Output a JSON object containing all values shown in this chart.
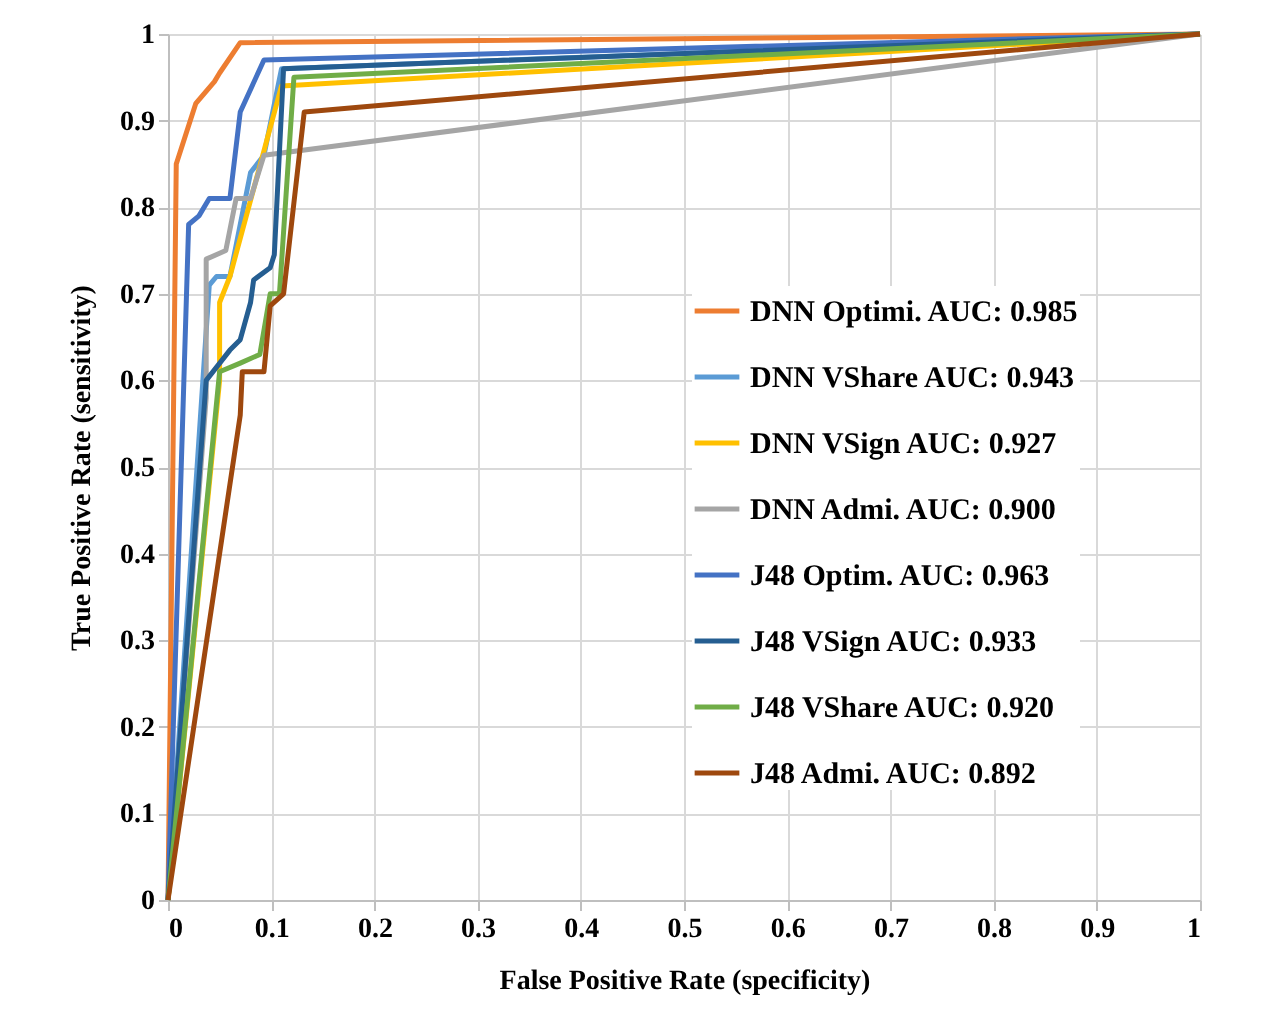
{
  "chart_data": {
    "type": "line",
    "xlabel": "False Positive Rate (specificity)",
    "ylabel": "True Positive Rate (sensitivity)",
    "xlim": [
      0,
      1
    ],
    "ylim": [
      0,
      1
    ],
    "xticks": [
      0,
      0.1,
      0.2,
      0.3,
      0.4,
      0.5,
      0.6,
      0.7,
      0.8,
      0.9,
      1
    ],
    "yticks": [
      0,
      0.1,
      0.2,
      0.3,
      0.4,
      0.5,
      0.6,
      0.7,
      0.8,
      0.9,
      1
    ],
    "grid": true,
    "legend": "right",
    "marker": "none",
    "line_style": "solid",
    "series": [
      {
        "name": "DNN Optimi. AUC: 0.985",
        "color": "#ed7d31",
        "x": [
          0,
          0.008,
          0.027,
          0.045,
          0.05,
          0.07,
          1
        ],
        "values": [
          0,
          0.85,
          0.92,
          0.945,
          0.955,
          0.99,
          1
        ]
      },
      {
        "name": "DNN VShare AUC: 0.943",
        "color": "#5b9bd5",
        "x": [
          0,
          0.04,
          0.047,
          0.06,
          0.08,
          0.093,
          0.11,
          1
        ],
        "values": [
          0,
          0.71,
          0.72,
          0.72,
          0.84,
          0.86,
          0.96,
          1
        ]
      },
      {
        "name": "DNN VSign AUC: 0.927",
        "color": "#ffc000",
        "x": [
          0,
          0.05,
          0.05,
          0.06,
          0.11,
          1
        ],
        "values": [
          0,
          0.6,
          0.69,
          0.72,
          0.94,
          1
        ]
      },
      {
        "name": "DNN Admi. AUC: 0.900",
        "color": "#a5a5a5",
        "x": [
          0,
          0.037,
          0.037,
          0.056,
          0.066,
          0.08,
          0.093,
          1
        ],
        "values": [
          0,
          0.58,
          0.74,
          0.75,
          0.81,
          0.81,
          0.86,
          1
        ]
      },
      {
        "name": "J48 Optim. AUC: 0.963",
        "color": "#4472c4",
        "x": [
          0,
          0.02,
          0.03,
          0.04,
          0.06,
          0.07,
          0.093,
          1
        ],
        "values": [
          0,
          0.78,
          0.79,
          0.81,
          0.81,
          0.91,
          0.97,
          1
        ]
      },
      {
        "name": "J48 VSign AUC: 0.933",
        "color": "#255e91",
        "x": [
          0,
          0.037,
          0.06,
          0.07,
          0.08,
          0.083,
          0.099,
          0.103,
          0.112,
          1
        ],
        "values": [
          0,
          0.6,
          0.635,
          0.647,
          0.69,
          0.716,
          0.73,
          0.745,
          0.96,
          1
        ]
      },
      {
        "name": "J48 VShare AUC: 0.920",
        "color": "#70ad47",
        "x": [
          0,
          0.05,
          0.07,
          0.089,
          0.099,
          0.108,
          0.122,
          1
        ],
        "values": [
          0,
          0.61,
          0.62,
          0.63,
          0.7,
          0.7,
          0.95,
          1
        ]
      },
      {
        "name": "J48 Admi. AUC: 0.892",
        "color": "#9e480e",
        "x": [
          0,
          0.07,
          0.072,
          0.093,
          0.099,
          0.112,
          0.132,
          1
        ],
        "values": [
          0,
          0.56,
          0.61,
          0.61,
          0.686,
          0.7,
          0.91,
          1
        ]
      }
    ]
  }
}
